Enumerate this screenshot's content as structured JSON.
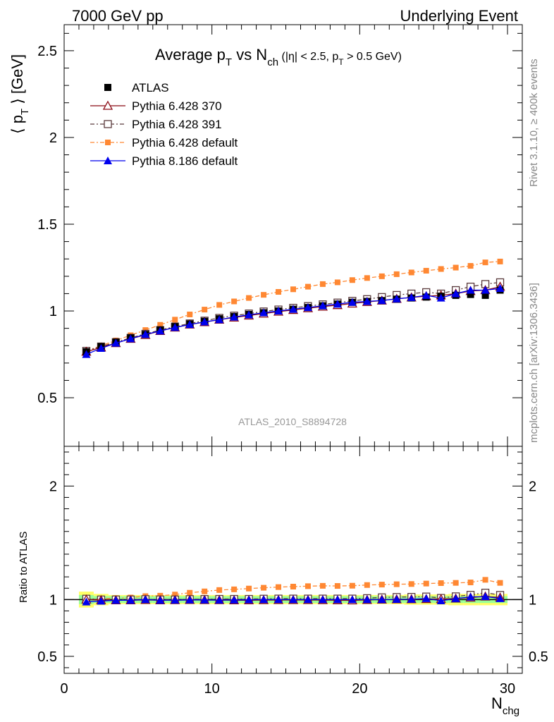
{
  "header": {
    "left": "7000 GeV pp",
    "right": "Underlying Event"
  },
  "side_labels": {
    "rivet": "Rivet 3.1.10, ≥ 400k events",
    "mcplots": "mcplots.cern.ch [arXiv:1306.3436]"
  },
  "watermark": "ATLAS_2010_S8894728",
  "title": {
    "main": "Average p",
    "main_sub": "T",
    "vs": " vs N",
    "vs_sub": "ch",
    "cut": " (|η| < 2.5, p",
    "cut_sub": "T",
    "cut_end": " > 0.5 GeV)"
  },
  "colors": {
    "atlas": "#000000",
    "py370": "#8b0a14",
    "py391": "#5a3a3c",
    "py6def": "#ff8833",
    "py8def": "#0000ee",
    "band_inner": "#99ff99",
    "band_outer": "#ffff66"
  },
  "chart_data": {
    "type": "line",
    "xlabel": "N",
    "xlabel_sub": "chg",
    "ylabel": "⟨ p",
    "ylabel_sub": "T",
    "ylabel_end": " ⟩ [GeV]",
    "ratio_ylabel": "Ratio to ATLAS",
    "xlim": [
      0,
      31
    ],
    "ylim": [
      0.22,
      2.65
    ],
    "ratio_ylim": [
      0.35,
      2.35
    ],
    "xticks": [
      0,
      10,
      20,
      30
    ],
    "xtick_labels": [
      "0",
      "10",
      "20",
      "30"
    ],
    "yticks": [
      0.5,
      1,
      1.5,
      2,
      2.5
    ],
    "ytick_labels": [
      "0.5",
      "1",
      "1.5",
      "2",
      "2.5"
    ],
    "ratio_yticks": [
      0.5,
      1,
      2
    ],
    "ratio_ytick_labels": [
      "0.5",
      "1",
      "2"
    ],
    "legend_position": "top-left",
    "grid": false,
    "x": [
      1.5,
      2.5,
      3.5,
      4.5,
      5.5,
      6.5,
      7.5,
      8.5,
      9.5,
      10.5,
      11.5,
      12.5,
      13.5,
      14.5,
      15.5,
      16.5,
      17.5,
      18.5,
      19.5,
      20.5,
      21.5,
      22.5,
      23.5,
      24.5,
      25.5,
      26.5,
      27.5,
      28.5,
      29.5
    ],
    "series": [
      {
        "name": "ATLAS",
        "key": "atlas",
        "values": [
          0.765,
          0.795,
          0.82,
          0.845,
          0.865,
          0.89,
          0.91,
          0.925,
          0.94,
          0.955,
          0.968,
          0.98,
          0.99,
          1.0,
          1.01,
          1.02,
          1.03,
          1.04,
          1.05,
          1.055,
          1.06,
          1.068,
          1.075,
          1.08,
          1.085,
          1.09,
          1.095,
          1.09,
          1.12
        ],
        "ratio": [
          1.0,
          1.0,
          1.0,
          1.0,
          1.0,
          1.0,
          1.0,
          1.0,
          1.0,
          1.0,
          1.0,
          1.0,
          1.0,
          1.0,
          1.0,
          1.0,
          1.0,
          1.0,
          1.0,
          1.0,
          1.0,
          1.0,
          1.0,
          1.0,
          1.0,
          1.0,
          1.0,
          1.0,
          1.0
        ]
      },
      {
        "name": "Pythia 6.428 370",
        "key": "py370",
        "values": [
          0.765,
          0.79,
          0.815,
          0.84,
          0.862,
          0.885,
          0.905,
          0.922,
          0.936,
          0.95,
          0.962,
          0.974,
          0.985,
          0.996,
          1.006,
          1.016,
          1.025,
          1.034,
          1.043,
          1.052,
          1.06,
          1.07,
          1.078,
          1.085,
          1.09,
          1.1,
          1.115,
          1.12,
          1.14
        ],
        "ratio": [
          1.0,
          0.995,
          0.994,
          0.994,
          0.997,
          0.994,
          0.995,
          0.997,
          0.996,
          0.995,
          0.994,
          0.994,
          0.995,
          0.996,
          0.996,
          0.996,
          0.995,
          0.994,
          0.993,
          0.997,
          1.0,
          1.002,
          1.003,
          1.005,
          1.005,
          1.009,
          1.018,
          1.027,
          1.018
        ]
      },
      {
        "name": "Pythia 6.428 391",
        "key": "py391",
        "values": [
          0.77,
          0.795,
          0.82,
          0.845,
          0.868,
          0.89,
          0.91,
          0.928,
          0.944,
          0.96,
          0.973,
          0.985,
          0.997,
          1.008,
          1.018,
          1.028,
          1.038,
          1.048,
          1.058,
          1.068,
          1.08,
          1.092,
          1.1,
          1.108,
          1.1,
          1.12,
          1.14,
          1.155,
          1.165
        ],
        "ratio": [
          1.007,
          1.0,
          1.0,
          1.0,
          1.003,
          1.0,
          1.0,
          1.003,
          1.004,
          1.005,
          1.005,
          1.005,
          1.007,
          1.008,
          1.008,
          1.008,
          1.008,
          1.008,
          1.008,
          1.012,
          1.019,
          1.022,
          1.023,
          1.026,
          1.014,
          1.028,
          1.041,
          1.06,
          1.04
        ]
      },
      {
        "name": "Pythia 6.428 default",
        "key": "py6def",
        "values": [
          0.77,
          0.8,
          0.83,
          0.86,
          0.89,
          0.92,
          0.95,
          0.98,
          1.008,
          1.035,
          1.055,
          1.075,
          1.093,
          1.11,
          1.125,
          1.14,
          1.155,
          1.165,
          1.178,
          1.19,
          1.2,
          1.212,
          1.222,
          1.232,
          1.242,
          1.25,
          1.26,
          1.28,
          1.285
        ],
        "ratio": [
          1.005,
          1.006,
          1.012,
          1.018,
          1.03,
          1.034,
          1.044,
          1.06,
          1.072,
          1.084,
          1.09,
          1.097,
          1.104,
          1.11,
          1.114,
          1.118,
          1.121,
          1.12,
          1.122,
          1.128,
          1.132,
          1.135,
          1.137,
          1.141,
          1.145,
          1.147,
          1.151,
          1.174,
          1.147
        ]
      },
      {
        "name": "Pythia 8.186 default",
        "key": "py8def",
        "values": [
          0.75,
          0.785,
          0.815,
          0.84,
          0.865,
          0.885,
          0.905,
          0.922,
          0.937,
          0.95,
          0.965,
          0.978,
          0.99,
          1.0,
          1.01,
          1.02,
          1.03,
          1.04,
          1.05,
          1.055,
          1.06,
          1.07,
          1.078,
          1.09,
          1.075,
          1.1,
          1.12,
          1.12,
          1.13
        ],
        "ratio": [
          0.98,
          0.987,
          0.994,
          0.994,
          1.0,
          0.994,
          0.995,
          0.997,
          0.997,
          0.995,
          0.997,
          0.998,
          1.0,
          1.0,
          1.0,
          1.0,
          1.0,
          1.0,
          1.0,
          1.0,
          1.0,
          1.002,
          1.003,
          1.009,
          0.99,
          1.009,
          1.023,
          1.027,
          1.009
        ]
      }
    ],
    "band_inner": [
      0.04,
      0.03,
      0.03,
      0.03,
      0.03,
      0.03,
      0.03,
      0.03,
      0.03,
      0.03,
      0.03,
      0.03,
      0.03,
      0.03,
      0.03,
      0.03,
      0.03,
      0.03,
      0.03,
      0.03,
      0.03,
      0.03,
      0.03,
      0.03,
      0.03,
      0.03,
      0.03,
      0.03,
      0.03
    ],
    "band_outer": [
      0.07,
      0.05,
      0.04,
      0.04,
      0.04,
      0.04,
      0.04,
      0.04,
      0.04,
      0.04,
      0.04,
      0.04,
      0.04,
      0.04,
      0.04,
      0.04,
      0.04,
      0.04,
      0.04,
      0.04,
      0.04,
      0.04,
      0.045,
      0.045,
      0.045,
      0.05,
      0.05,
      0.05,
      0.05
    ]
  }
}
